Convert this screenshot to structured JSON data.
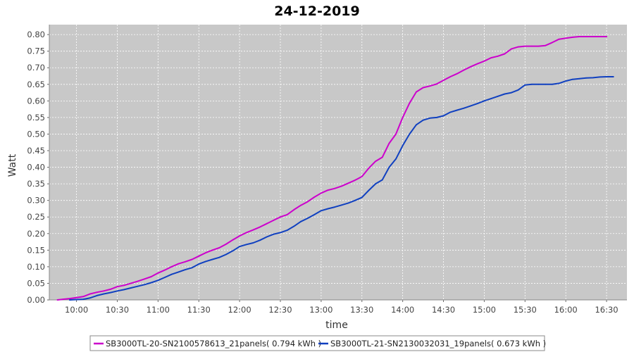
{
  "chart_data": {
    "type": "line",
    "title": "24-12-2019",
    "xlabel": "time",
    "ylabel": "Watt",
    "x_ticks": [
      "10:00",
      "10:30",
      "11:00",
      "11:30",
      "12:00",
      "12:30",
      "13:00",
      "13:30",
      "14:00",
      "14:30",
      "15:00",
      "15:30",
      "16:00",
      "16:30"
    ],
    "y_ticks": [
      "0.00",
      "0.05",
      "0.10",
      "0.15",
      "0.20",
      "0.25",
      "0.30",
      "0.35",
      "0.40",
      "0.45",
      "0.50",
      "0.55",
      "0.60",
      "0.65",
      "0.70",
      "0.75",
      "0.80"
    ],
    "xlim": [
      "09:40",
      "16:45"
    ],
    "ylim": [
      0,
      0.83
    ],
    "grid": true,
    "legend_position": "bottom",
    "series": [
      {
        "name": "SB3000TL-20-SN2100578613_21panels( 0.794 kWh )",
        "color": "#cc00cc",
        "x": [
          "09:46",
          "09:50",
          "09:55",
          "10:00",
          "10:05",
          "10:10",
          "10:15",
          "10:20",
          "10:25",
          "10:30",
          "10:35",
          "10:40",
          "10:45",
          "10:50",
          "10:55",
          "11:00",
          "11:05",
          "11:10",
          "11:15",
          "11:20",
          "11:25",
          "11:30",
          "11:35",
          "11:40",
          "11:45",
          "11:50",
          "11:55",
          "12:00",
          "12:05",
          "12:10",
          "12:15",
          "12:20",
          "12:25",
          "12:30",
          "12:35",
          "12:40",
          "12:45",
          "12:50",
          "12:55",
          "13:00",
          "13:05",
          "13:10",
          "13:15",
          "13:20",
          "13:25",
          "13:30",
          "13:35",
          "13:40",
          "13:45",
          "13:50",
          "13:55",
          "14:00",
          "14:05",
          "14:10",
          "14:15",
          "14:20",
          "14:25",
          "14:30",
          "14:35",
          "14:40",
          "14:45",
          "14:50",
          "14:55",
          "15:00",
          "15:05",
          "15:10",
          "15:15",
          "15:20",
          "15:25",
          "15:30",
          "15:35",
          "15:40",
          "15:45",
          "15:50",
          "15:55",
          "16:00",
          "16:05",
          "16:10",
          "16:15",
          "16:20",
          "16:25",
          "16:30"
        ],
        "y": [
          0.0,
          0.002,
          0.004,
          0.007,
          0.01,
          0.018,
          0.023,
          0.027,
          0.032,
          0.04,
          0.044,
          0.05,
          0.056,
          0.063,
          0.07,
          0.081,
          0.09,
          0.1,
          0.109,
          0.115,
          0.122,
          0.132,
          0.142,
          0.15,
          0.157,
          0.168,
          0.181,
          0.193,
          0.203,
          0.211,
          0.22,
          0.23,
          0.24,
          0.25,
          0.257,
          0.272,
          0.285,
          0.296,
          0.31,
          0.322,
          0.331,
          0.336,
          0.343,
          0.352,
          0.361,
          0.372,
          0.397,
          0.418,
          0.43,
          0.472,
          0.5,
          0.55,
          0.593,
          0.627,
          0.64,
          0.645,
          0.651,
          0.662,
          0.673,
          0.682,
          0.693,
          0.703,
          0.712,
          0.72,
          0.73,
          0.735,
          0.742,
          0.757,
          0.763,
          0.765,
          0.765,
          0.765,
          0.767,
          0.776,
          0.786,
          0.789,
          0.792,
          0.794,
          0.794,
          0.794,
          0.794,
          0.794
        ]
      },
      {
        "name": "SB3000TL-21-SN2130032031_19panels( 0.673 kWh )",
        "color": "#1040c0",
        "x": [
          "09:55",
          "10:00",
          "10:05",
          "10:10",
          "10:15",
          "10:20",
          "10:25",
          "10:30",
          "10:35",
          "10:40",
          "10:45",
          "10:50",
          "10:55",
          "11:00",
          "11:05",
          "11:10",
          "11:15",
          "11:20",
          "11:25",
          "11:30",
          "11:35",
          "11:40",
          "11:45",
          "11:50",
          "11:55",
          "12:00",
          "12:05",
          "12:10",
          "12:15",
          "12:20",
          "12:25",
          "12:30",
          "12:35",
          "12:40",
          "12:45",
          "12:50",
          "12:55",
          "13:00",
          "13:05",
          "13:10",
          "13:15",
          "13:20",
          "13:25",
          "13:30",
          "13:35",
          "13:40",
          "13:45",
          "13:50",
          "13:55",
          "14:00",
          "14:05",
          "14:10",
          "14:15",
          "14:20",
          "14:25",
          "14:30",
          "14:35",
          "14:40",
          "14:45",
          "14:50",
          "14:55",
          "15:00",
          "15:05",
          "15:10",
          "15:15",
          "15:20",
          "15:25",
          "15:30",
          "15:35",
          "15:40",
          "15:45",
          "15:50",
          "15:55",
          "16:00",
          "16:05",
          "16:10",
          "16:15",
          "16:20",
          "16:25",
          "16:30",
          "16:35"
        ],
        "y": [
          0.0,
          0.001,
          0.002,
          0.006,
          0.013,
          0.018,
          0.022,
          0.027,
          0.031,
          0.036,
          0.041,
          0.046,
          0.052,
          0.059,
          0.068,
          0.077,
          0.084,
          0.091,
          0.097,
          0.108,
          0.116,
          0.122,
          0.128,
          0.137,
          0.148,
          0.161,
          0.167,
          0.172,
          0.18,
          0.19,
          0.198,
          0.203,
          0.21,
          0.222,
          0.236,
          0.246,
          0.257,
          0.269,
          0.275,
          0.28,
          0.286,
          0.292,
          0.3,
          0.309,
          0.33,
          0.35,
          0.362,
          0.4,
          0.425,
          0.465,
          0.5,
          0.528,
          0.542,
          0.548,
          0.55,
          0.555,
          0.566,
          0.572,
          0.578,
          0.585,
          0.592,
          0.6,
          0.607,
          0.614,
          0.621,
          0.625,
          0.633,
          0.648,
          0.65,
          0.65,
          0.65,
          0.65,
          0.653,
          0.66,
          0.665,
          0.667,
          0.669,
          0.67,
          0.672,
          0.673,
          0.673
        ]
      }
    ]
  }
}
